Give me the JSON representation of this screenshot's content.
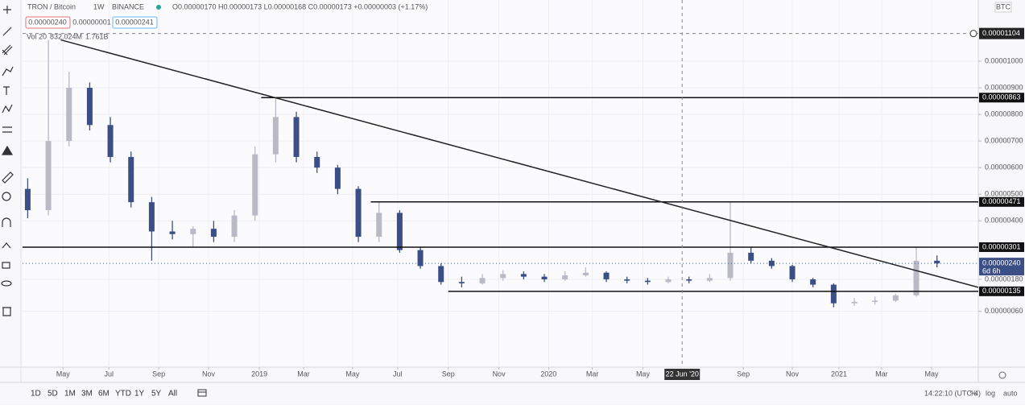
{
  "header": {
    "symbol": "TRON / Bitcoin",
    "interval": "1W",
    "exchange": "BINANCE",
    "ohlc": "O0.00000170 H0.00000173 L0.00000168 C0.00000173 +0.00000003 (+1.17%)",
    "sell": "0.00000240",
    "spread": "0.00000001",
    "buy": "0.00000241",
    "vol_label": "Vol 20",
    "vol_a": "832.024M",
    "vol_b": "1.761B",
    "currency": "BTC"
  },
  "chart_data": {
    "type": "candlestick",
    "open": [
      5.2e-06,
      4.4e-06,
      7e-06,
      9e-06,
      7.6e-06,
      6.4e-06,
      4.7e-06,
      3.6e-06,
      3.5e-06,
      3.7e-06,
      3.4e-06,
      4.2e-06,
      6.5e-06,
      7.9e-06,
      6.4e-06,
      6e-06,
      5.2e-06,
      3.4e-06,
      4.3e-06,
      2.9e-06,
      2.3e-06,
      1.7e-06,
      1.65e-06,
      1.85e-06,
      2e-06,
      1.9e-06,
      1.8e-06,
      1.95e-06,
      2.05e-06,
      1.8e-06,
      1.75e-06,
      1.7e-06,
      1.8e-06,
      1.75e-06,
      1.85e-06,
      2.8e-06,
      2.5e-06,
      2.3e-06,
      1.8e-06,
      1.6e-06,
      9e-07,
      9.5e-07,
      1e-06,
      1.2e-06,
      2.5e-06
    ],
    "high": [
      5.6e-06,
      1.08e-05,
      9.6e-06,
      9.2e-06,
      7.9e-06,
      6.6e-06,
      4.9e-06,
      4e-06,
      3.8e-06,
      4e-06,
      4.4e-06,
      6.8e-06,
      8.63e-06,
      8.1e-06,
      6.6e-06,
      6.1e-06,
      5.3e-06,
      4.71e-06,
      4.4e-06,
      3e-06,
      2.4e-06,
      1.9e-06,
      2e-06,
      2.15e-06,
      2.1e-06,
      2e-06,
      2.1e-06,
      2.25e-06,
      2.1e-06,
      1.9e-06,
      1.85e-06,
      1.9e-06,
      1.9e-06,
      2e-06,
      4.71e-06,
      3e-06,
      2.6e-06,
      2.35e-06,
      1.85e-06,
      1.65e-06,
      1.1e-06,
      1.15e-06,
      1.25e-06,
      3.01e-06,
      2.7e-06
    ],
    "low": [
      4.1e-06,
      4.2e-06,
      6.8e-06,
      7.4e-06,
      6.2e-06,
      4.5e-06,
      2.5e-06,
      3.3e-06,
      3e-06,
      3.2e-06,
      3.2e-06,
      4e-06,
      6.2e-06,
      6.2e-06,
      5.8e-06,
      5e-06,
      3.2e-06,
      3.2e-06,
      2.8e-06,
      2.2e-06,
      1.6e-06,
      1.5e-06,
      1.6e-06,
      1.75e-06,
      1.8e-06,
      1.7e-06,
      1.75e-06,
      1.9e-06,
      1.7e-06,
      1.65e-06,
      1.6e-06,
      1.65e-06,
      1.65e-06,
      1.7e-06,
      1.75e-06,
      2.4e-06,
      2.2e-06,
      1.7e-06,
      1.5e-06,
      7.5e-07,
      8e-07,
      8.5e-07,
      9.5e-07,
      1.15e-06,
      2.25e-06
    ],
    "close": [
      4.4e-06,
      7e-06,
      9e-06,
      7.6e-06,
      6.4e-06,
      4.7e-06,
      3.6e-06,
      3.5e-06,
      3.7e-06,
      3.4e-06,
      4.2e-06,
      6.5e-06,
      7.9e-06,
      6.4e-06,
      6e-06,
      5.2e-06,
      3.4e-06,
      4.3e-06,
      2.9e-06,
      2.3e-06,
      1.7e-06,
      1.65e-06,
      1.85e-06,
      2e-06,
      1.9e-06,
      1.8e-06,
      1.95e-06,
      2.05e-06,
      1.8e-06,
      1.75e-06,
      1.7e-06,
      1.8e-06,
      1.75e-06,
      1.85e-06,
      2.8e-06,
      2.5e-06,
      2.3e-06,
      1.8e-06,
      1.6e-06,
      9e-07,
      9.5e-07,
      1e-06,
      1.2e-06,
      2.5e-06,
      2.4e-06
    ],
    "up_color": "#b9bac6",
    "down_color": "#3b4f86",
    "xlim": [
      -0.25,
      46
    ],
    "xticks": [
      {
        "value": 1.71,
        "label": "May"
      },
      {
        "value": 3.93,
        "label": "Jul"
      },
      {
        "value": 6.34,
        "label": "Sep"
      },
      {
        "value": 8.75,
        "label": "Nov"
      },
      {
        "value": 11.21,
        "label": "2019"
      },
      {
        "value": 13.35,
        "label": "Mar"
      },
      {
        "value": 15.72,
        "label": "May"
      },
      {
        "value": 17.9,
        "label": "Jul"
      },
      {
        "value": 20.35,
        "label": "Sep"
      },
      {
        "value": 22.8,
        "label": "Nov"
      },
      {
        "value": 25.21,
        "label": "2020"
      },
      {
        "value": 27.32,
        "label": "Mar"
      },
      {
        "value": 29.77,
        "label": "May"
      },
      {
        "value": 34.63,
        "label": "Sep"
      },
      {
        "value": 37,
        "label": "Nov"
      },
      {
        "value": 39.26,
        "label": "2021"
      },
      {
        "value": 41.32,
        "label": "Mar"
      },
      {
        "value": 43.74,
        "label": "May"
      }
    ],
    "ylim": [
      -1.5e-06,
      1.23e-05
    ],
    "yticks": [
      {
        "value": 1e-05,
        "label": "0.00001000"
      },
      {
        "value": 9e-06,
        "label": "0.00000900"
      },
      {
        "value": 8e-06,
        "label": "0.00000800"
      },
      {
        "value": 7e-06,
        "label": "0.00000700"
      },
      {
        "value": 6e-06,
        "label": "0.00000600"
      },
      {
        "value": 5e-06,
        "label": "0.00000500"
      },
      {
        "value": 4e-06,
        "label": "0.00000400"
      },
      {
        "value": 1.8e-06,
        "label": "0.00000180"
      },
      {
        "value": 6e-07,
        "label": "0.00000060"
      }
    ],
    "grid": true,
    "levels": [
      {
        "value": 8.63e-06,
        "label": "0.00000863",
        "from": 11.3
      },
      {
        "value": 4.71e-06,
        "label": "0.00000471",
        "from": 16.6
      },
      {
        "value": 3.01e-06,
        "label": "0.00000301",
        "from": -0.25
      },
      {
        "value": 1.35e-06,
        "label": "0.00000135",
        "from": 20.35
      }
    ],
    "trendline": {
      "from": [
        1.6,
        1.08e-05
      ],
      "to": [
        46,
        1.5e-06
      ]
    },
    "crosshair": {
      "x": 31.67,
      "x_label": "22 Jun '20",
      "y": 1.104e-05,
      "y_label": "0.00001104"
    },
    "last_price": {
      "value": 2.4e-06,
      "label": "0.00000240",
      "countdown": "6d 6h"
    }
  },
  "footer": {
    "ranges": [
      "1D",
      "5D",
      "1M",
      "3M",
      "6M",
      "YTD",
      "1Y",
      "5Y",
      "All"
    ],
    "time": "14:22:10 (UTC-4)",
    "percent": "%",
    "log": "log",
    "auto": "auto"
  }
}
